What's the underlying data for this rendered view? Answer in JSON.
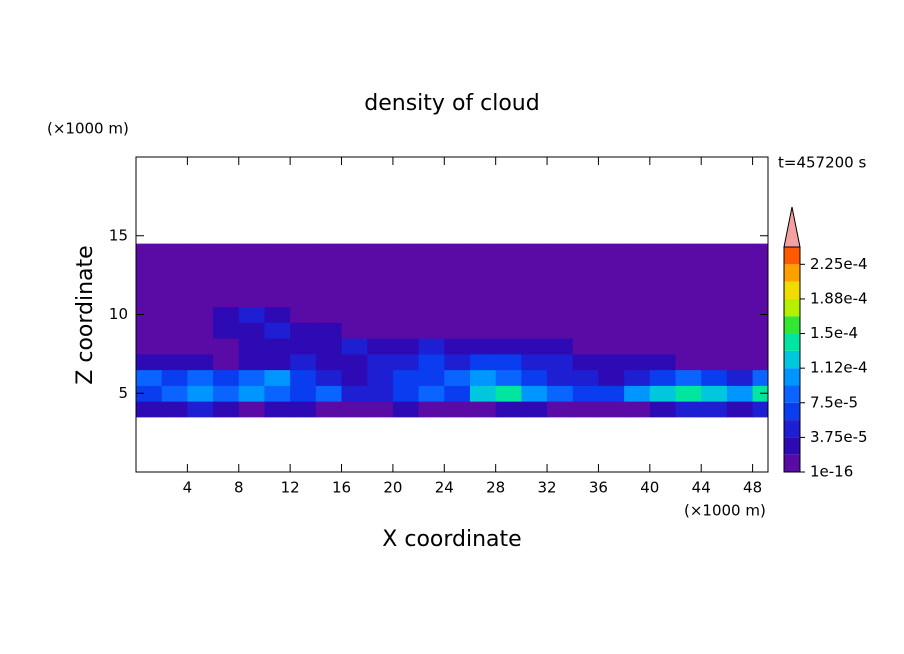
{
  "chart_data": {
    "type": "contour",
    "title": "density of cloud",
    "time_label": "t=457200 s",
    "x_label": "X coordinate",
    "y_label": "Z coordinate",
    "x_unit": "(×1000 m)",
    "y_unit": "(×1000 m)",
    "xlim": [
      0,
      49.2
    ],
    "ylim": [
      0,
      20
    ],
    "xticks": [
      4,
      8,
      12,
      16,
      20,
      24,
      28,
      32,
      36,
      40,
      44,
      48
    ],
    "yticks": [
      5,
      10,
      15
    ],
    "x_edges": [
      0,
      2,
      4,
      6,
      8,
      10,
      12,
      14,
      16,
      18,
      20,
      22,
      24,
      26,
      28,
      30,
      32,
      34,
      36,
      38,
      40,
      42,
      44,
      46,
      48,
      49.2
    ],
    "z_edges": [
      3.5,
      4.5,
      5.5,
      6.5,
      7.5,
      8.5,
      9.5,
      10.5,
      11.5,
      12.5,
      13.5,
      14.5
    ],
    "z": [
      [
        2.5e-05,
        2.5e-05,
        4e-05,
        2.5e-05,
        5e-06,
        2.5e-05,
        2.5e-05,
        5e-06,
        5e-06,
        5e-06,
        2.5e-05,
        5e-06,
        5e-06,
        5e-06,
        2.5e-05,
        2.5e-05,
        5e-06,
        5e-06,
        5e-06,
        5e-06,
        2.5e-05,
        4e-05,
        4e-05,
        2.5e-05,
        4e-05
      ],
      [
        6e-05,
        8e-05,
        0.0001,
        8e-05,
        0.0001,
        8e-05,
        6e-05,
        8e-05,
        4e-05,
        4e-05,
        6e-05,
        8e-05,
        6e-05,
        0.00012,
        0.00014,
        0.0001,
        8e-05,
        6e-05,
        6e-05,
        0.0001,
        0.00012,
        0.00014,
        0.00012,
        0.0001,
        0.00014
      ],
      [
        8e-05,
        6e-05,
        8e-05,
        6e-05,
        8e-05,
        0.0001,
        6e-05,
        4e-05,
        2.5e-05,
        4e-05,
        6e-05,
        6e-05,
        8e-05,
        0.0001,
        8e-05,
        6e-05,
        4e-05,
        4e-05,
        2.5e-05,
        4e-05,
        6e-05,
        8e-05,
        6e-05,
        4e-05,
        8e-05
      ],
      [
        2.5e-05,
        2.5e-05,
        2.5e-05,
        5e-06,
        2.5e-05,
        2.5e-05,
        4e-05,
        2.5e-05,
        2.5e-05,
        4e-05,
        4e-05,
        6e-05,
        4e-05,
        6e-05,
        6e-05,
        4e-05,
        4e-05,
        2.5e-05,
        2.5e-05,
        2.5e-05,
        2.5e-05,
        5e-06,
        5e-06,
        5e-06,
        5e-06
      ],
      [
        5e-06,
        5e-06,
        5e-06,
        5e-06,
        2.5e-05,
        2.5e-05,
        2.5e-05,
        2.5e-05,
        4e-05,
        2.5e-05,
        2.5e-05,
        4e-05,
        2.5e-05,
        2.5e-05,
        2.5e-05,
        2.5e-05,
        2.5e-05,
        5e-06,
        5e-06,
        5e-06,
        5e-06,
        5e-06,
        5e-06,
        5e-06,
        5e-06
      ],
      [
        5e-06,
        5e-06,
        5e-06,
        2.5e-05,
        2.5e-05,
        4e-05,
        2.5e-05,
        2.5e-05,
        5e-06,
        5e-06,
        5e-06,
        5e-06,
        5e-06,
        5e-06,
        5e-06,
        5e-06,
        5e-06,
        5e-06,
        5e-06,
        5e-06,
        5e-06,
        5e-06,
        5e-06,
        5e-06,
        5e-06
      ],
      [
        5e-06,
        5e-06,
        5e-06,
        2.5e-05,
        5e-05,
        2.5e-05,
        5e-06,
        5e-06,
        5e-06,
        5e-06,
        5e-06,
        5e-06,
        5e-06,
        5e-06,
        5e-06,
        5e-06,
        5e-06,
        5e-06,
        5e-06,
        5e-06,
        5e-06,
        5e-06,
        5e-06,
        5e-06,
        5e-06
      ],
      [
        5e-06,
        5e-06,
        5e-06,
        5e-06,
        5e-06,
        5e-06,
        5e-06,
        5e-06,
        5e-06,
        5e-06,
        5e-06,
        5e-06,
        5e-06,
        5e-06,
        5e-06,
        5e-06,
        5e-06,
        5e-06,
        5e-06,
        5e-06,
        5e-06,
        5e-06,
        5e-06,
        5e-06,
        5e-06
      ],
      [
        5e-06,
        5e-06,
        5e-06,
        5e-06,
        5e-06,
        5e-06,
        5e-06,
        5e-06,
        5e-06,
        5e-06,
        5e-06,
        5e-06,
        5e-06,
        5e-06,
        5e-06,
        5e-06,
        5e-06,
        5e-06,
        5e-06,
        5e-06,
        5e-06,
        5e-06,
        5e-06,
        5e-06,
        5e-06
      ],
      [
        5e-06,
        5e-06,
        5e-06,
        5e-06,
        5e-06,
        5e-06,
        5e-06,
        5e-06,
        5e-06,
        5e-06,
        5e-06,
        5e-06,
        5e-06,
        5e-06,
        5e-06,
        5e-06,
        5e-06,
        5e-06,
        5e-06,
        5e-06,
        5e-06,
        5e-06,
        5e-06,
        5e-06,
        5e-06
      ],
      [
        5e-06,
        5e-06,
        5e-06,
        5e-06,
        5e-06,
        5e-06,
        5e-06,
        5e-06,
        5e-06,
        5e-06,
        5e-06,
        5e-06,
        5e-06,
        5e-06,
        5e-06,
        5e-06,
        5e-06,
        5e-06,
        5e-06,
        5e-06,
        5e-06,
        5e-06,
        5e-06,
        5e-06,
        5e-06
      ]
    ],
    "levels": [
      1e-16,
      1.875e-05,
      3.75e-05,
      5.625e-05,
      7.5e-05,
      9.375e-05,
      0.0001125,
      0.00013125,
      0.00015,
      0.00016875,
      0.0001875,
      0.00020625,
      0.000225,
      0.00024375
    ],
    "colors": [
      "#5a0aa5",
      "#2d0ab4",
      "#1e1ed2",
      "#0a3cf0",
      "#0a64ff",
      "#0096ff",
      "#00c8dc",
      "#00e6a0",
      "#32e632",
      "#b4f000",
      "#f0dc00",
      "#ffa000",
      "#ff5a00"
    ],
    "extend_color": "#f4a0a0",
    "colorbar_ticks": [
      {
        "value": 1e-16,
        "label": "1e-16"
      },
      {
        "value": 3.75e-05,
        "label": "3.75e-5"
      },
      {
        "value": 7.5e-05,
        "label": "7.5e-5"
      },
      {
        "value": 0.0001125,
        "label": "1.12e-4"
      },
      {
        "value": 0.00015,
        "label": "1.5e-4"
      },
      {
        "value": 0.0001875,
        "label": "1.88e-4"
      },
      {
        "value": 0.000225,
        "label": "2.25e-4"
      }
    ]
  }
}
